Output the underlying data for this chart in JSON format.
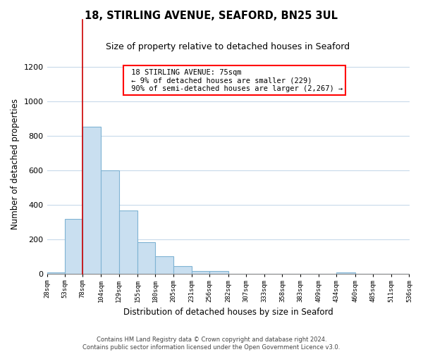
{
  "title_line1": "18, STIRLING AVENUE, SEAFORD, BN25 3UL",
  "title_line2": "Size of property relative to detached houses in Seaford",
  "xlabel": "Distribution of detached houses by size in Seaford",
  "ylabel": "Number of detached properties",
  "bar_color": "#c9dff0",
  "bar_edge_color": "#7fb3d3",
  "annotation_line1": "18 STIRLING AVENUE: 75sqm",
  "annotation_line2": "← 9% of detached houses are smaller (229)",
  "annotation_line3": "90% of semi-detached houses are larger (2,267) →",
  "marker_color": "#cc0000",
  "bins": [
    28,
    53,
    78,
    104,
    129,
    155,
    180,
    205,
    231,
    256,
    282,
    307,
    333,
    358,
    383,
    409,
    434,
    460,
    485,
    511,
    536
  ],
  "counts": [
    10,
    320,
    855,
    600,
    370,
    185,
    105,
    47,
    20,
    20,
    3,
    0,
    0,
    0,
    0,
    0,
    12,
    0,
    0,
    0,
    0
  ],
  "ylim": [
    0,
    1280
  ],
  "yticks": [
    0,
    200,
    400,
    600,
    800,
    1000,
    1200
  ],
  "footer_line1": "Contains HM Land Registry data © Crown copyright and database right 2024.",
  "footer_line2": "Contains public sector information licensed under the Open Government Licence v3.0.",
  "background_color": "#ffffff",
  "grid_color": "#c8daea"
}
